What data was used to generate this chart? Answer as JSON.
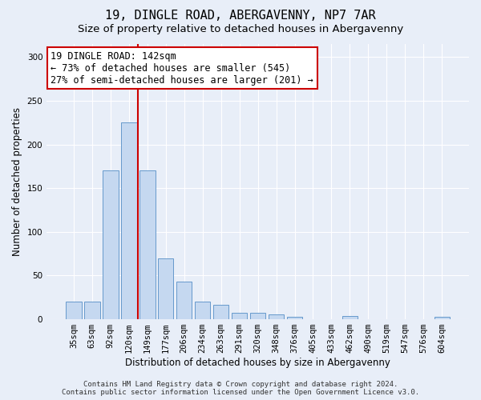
{
  "title": "19, DINGLE ROAD, ABERGAVENNY, NP7 7AR",
  "subtitle": "Size of property relative to detached houses in Abergavenny",
  "xlabel": "Distribution of detached houses by size in Abergavenny",
  "ylabel": "Number of detached properties",
  "categories": [
    "35sqm",
    "63sqm",
    "92sqm",
    "120sqm",
    "149sqm",
    "177sqm",
    "206sqm",
    "234sqm",
    "263sqm",
    "291sqm",
    "320sqm",
    "348sqm",
    "376sqm",
    "405sqm",
    "433sqm",
    "462sqm",
    "490sqm",
    "519sqm",
    "547sqm",
    "576sqm",
    "604sqm"
  ],
  "values": [
    20,
    20,
    170,
    225,
    170,
    70,
    43,
    20,
    17,
    7,
    7,
    6,
    3,
    0,
    0,
    4,
    0,
    0,
    0,
    0,
    3
  ],
  "bar_color": "#c5d8f0",
  "bar_edge_color": "#6699cc",
  "vline_x_index": 3.5,
  "vline_color": "#cc0000",
  "annotation_line1": "19 DINGLE ROAD: 142sqm",
  "annotation_line2": "← 73% of detached houses are smaller (545)",
  "annotation_line3": "27% of semi-detached houses are larger (201) →",
  "annotation_box_color": "#ffffff",
  "annotation_box_edge": "#cc0000",
  "ylim": [
    0,
    315
  ],
  "yticks": [
    0,
    50,
    100,
    150,
    200,
    250,
    300
  ],
  "footer": "Contains HM Land Registry data © Crown copyright and database right 2024.\nContains public sector information licensed under the Open Government Licence v3.0.",
  "background_color": "#e8eef8",
  "grid_color": "#ffffff",
  "title_fontsize": 11,
  "subtitle_fontsize": 9.5,
  "axis_label_fontsize": 8.5,
  "tick_fontsize": 7.5,
  "footer_fontsize": 6.5,
  "annotation_fontsize": 8.5
}
